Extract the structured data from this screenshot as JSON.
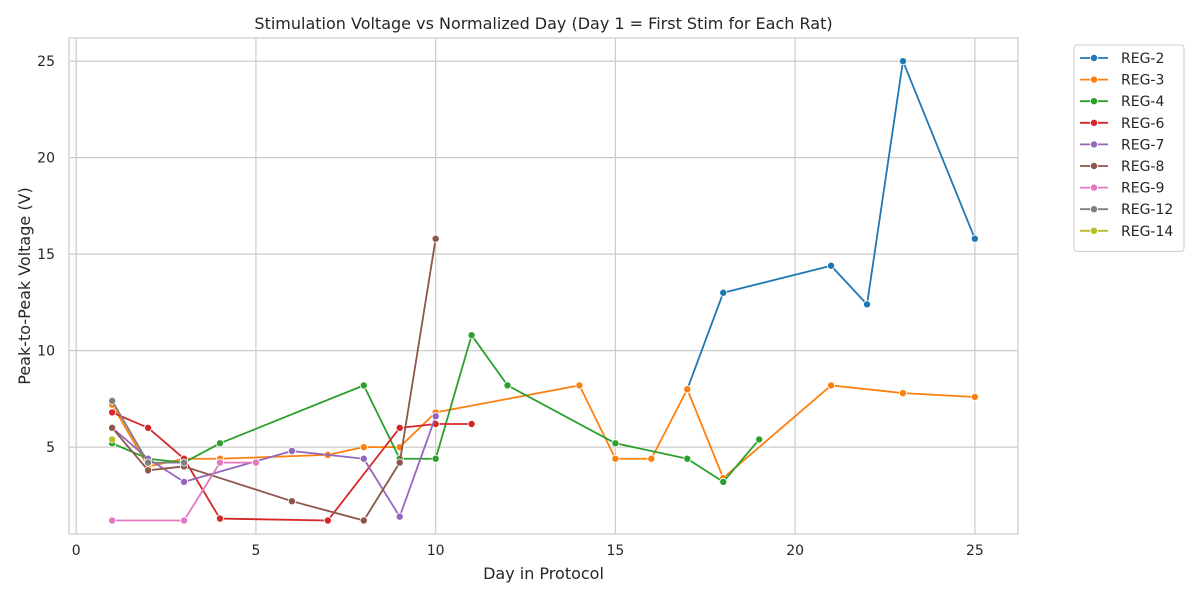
{
  "chart_data": {
    "type": "line",
    "title": "Stimulation Voltage vs Normalized Day (Day 1 = First Stim for Each Rat)",
    "xlabel": "Day in Protocol",
    "ylabel": "Peak-to-Peak Voltage (V)",
    "xlim": [
      -0.2,
      26.2
    ],
    "ylim": [
      0.5,
      26.2
    ],
    "xticks": [
      0,
      5,
      10,
      15,
      20,
      25
    ],
    "yticks": [
      5,
      10,
      15,
      20,
      25
    ],
    "grid": true,
    "legend_position": "outside-top-right",
    "series": [
      {
        "name": "REG-2",
        "color": "#1f77b4",
        "points": [
          [
            17,
            8.0
          ],
          [
            18,
            13.0
          ],
          [
            21,
            14.4
          ],
          [
            22,
            12.4
          ],
          [
            23,
            25.0
          ],
          [
            25,
            15.8
          ]
        ]
      },
      {
        "name": "REG-3",
        "color": "#ff7f0e",
        "points": [
          [
            1,
            7.2
          ],
          [
            2,
            4.0
          ],
          [
            3,
            4.4
          ],
          [
            4,
            4.4
          ],
          [
            7,
            4.6
          ],
          [
            8,
            5.0
          ],
          [
            9,
            5.0
          ],
          [
            10,
            6.8
          ],
          [
            14,
            8.2
          ],
          [
            15,
            4.4
          ],
          [
            16,
            4.4
          ],
          [
            17,
            8.0
          ],
          [
            18,
            3.4
          ],
          [
            21,
            8.2
          ],
          [
            23,
            7.8
          ],
          [
            25,
            7.6
          ]
        ]
      },
      {
        "name": "REG-4",
        "color": "#2ca02c",
        "points": [
          [
            1,
            5.2
          ],
          [
            2,
            4.4
          ],
          [
            3,
            4.2
          ],
          [
            4,
            5.2
          ],
          [
            8,
            8.2
          ],
          [
            9,
            4.4
          ],
          [
            10,
            4.4
          ],
          [
            11,
            10.8
          ],
          [
            12,
            8.2
          ],
          [
            15,
            5.2
          ],
          [
            17,
            4.4
          ],
          [
            18,
            3.2
          ],
          [
            19,
            5.4
          ]
        ]
      },
      {
        "name": "REG-6",
        "color": "#d62728",
        "points": [
          [
            1,
            6.8
          ],
          [
            2,
            6.0
          ],
          [
            3,
            4.4
          ],
          [
            4,
            1.3
          ],
          [
            7,
            1.2
          ],
          [
            9,
            6.0
          ],
          [
            10,
            6.2
          ],
          [
            11,
            6.2
          ]
        ]
      },
      {
        "name": "REG-7",
        "color": "#9467bd",
        "points": [
          [
            1,
            6.0
          ],
          [
            2,
            4.4
          ],
          [
            3,
            3.2
          ],
          [
            6,
            4.8
          ],
          [
            8,
            4.4
          ],
          [
            9,
            1.4
          ],
          [
            10,
            6.6
          ]
        ]
      },
      {
        "name": "REG-8",
        "color": "#8c564b",
        "points": [
          [
            1,
            6.0
          ],
          [
            2,
            3.8
          ],
          [
            3,
            4.0
          ],
          [
            6,
            2.2
          ],
          [
            8,
            1.2
          ],
          [
            9,
            4.2
          ],
          [
            10,
            15.8
          ]
        ]
      },
      {
        "name": "REG-9",
        "color": "#e377c2",
        "points": [
          [
            1,
            1.2
          ],
          [
            3,
            1.2
          ],
          [
            4,
            4.2
          ],
          [
            5,
            4.2
          ]
        ]
      },
      {
        "name": "REG-12",
        "color": "#7f7f7f",
        "points": [
          [
            1,
            7.4
          ],
          [
            2,
            4.2
          ],
          [
            3,
            4.2
          ]
        ]
      },
      {
        "name": "REG-14",
        "color": "#bcbd22",
        "points": [
          [
            1,
            5.4
          ]
        ]
      }
    ]
  }
}
